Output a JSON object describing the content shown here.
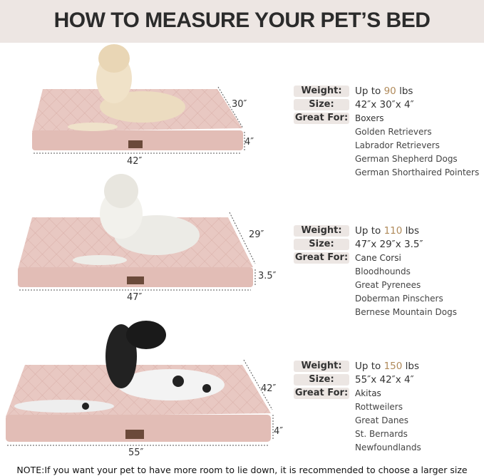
{
  "title": "HOW TO MEASURE YOUR PET’S BED",
  "labels": {
    "weight": "Weight:",
    "size": "Size:",
    "great_for": "Great For:"
  },
  "beds": [
    {
      "weight_prefix": "Up to ",
      "weight_num": "90",
      "weight_unit": " lbs",
      "size": "42″x 30″x 4″",
      "length": "42″",
      "width": "30″",
      "height": "4″",
      "breeds": [
        "Boxers",
        "Golden Retrievers",
        "Labrador Retrievers",
        "German Shepherd Dogs",
        "German Shorthaired Pointers"
      ]
    },
    {
      "weight_prefix": "Up to ",
      "weight_num": "110",
      "weight_unit": " lbs",
      "size": "47″x 29″x 3.5″",
      "length": "47″",
      "width": "29″",
      "height": "3.5″",
      "breeds": [
        "Cane Corsi",
        "Bloodhounds",
        "Great Pyrenees",
        "Doberman Pinschers",
        "Bernese Mountain Dogs"
      ]
    },
    {
      "weight_prefix": "Up to ",
      "weight_num": "150",
      "weight_unit": " lbs",
      "size": "55″x 42″x 4″",
      "length": "55″",
      "width": "42″",
      "height": "4″",
      "breeds": [
        "Akitas",
        "Rottweilers",
        "Great Danes",
        "St. Bernards",
        "Newfoundlands"
      ]
    }
  ],
  "note": "NOTE:If you want your pet to have more room to lie down, it is recommended to choose a larger size",
  "colors": {
    "header_bg": "#ede6e3",
    "bed": "#e6c3bd",
    "accent": "#b08a5a"
  }
}
